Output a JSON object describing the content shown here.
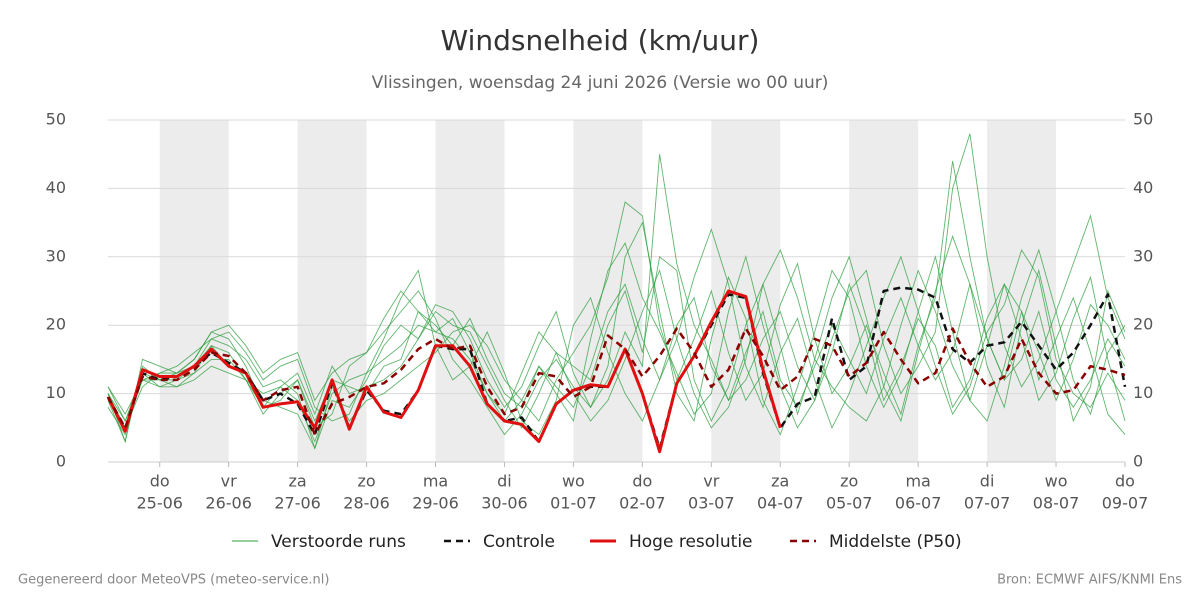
{
  "chart_data": {
    "type": "line",
    "title": "Windsnelheid (km/uur)",
    "subtitle": "Vlissingen, woensdag 24 juni 2026 (Versie wo 00 uur)",
    "categories": [
      null,
      null,
      null,
      [
        "do",
        "25-06"
      ],
      null,
      null,
      null,
      [
        "vr",
        "26-06"
      ],
      null,
      null,
      null,
      [
        "za",
        "27-06"
      ],
      null,
      null,
      null,
      [
        "zo",
        "28-06"
      ],
      null,
      null,
      null,
      [
        "ma",
        "29-06"
      ],
      null,
      null,
      null,
      [
        "di",
        "30-06"
      ],
      null,
      null,
      null,
      [
        "wo",
        "01-07"
      ],
      null,
      null,
      null,
      [
        "do",
        "02-07"
      ],
      null,
      null,
      null,
      [
        "vr",
        "03-07"
      ],
      null,
      null,
      null,
      [
        "za",
        "04-07"
      ],
      null,
      null,
      null,
      [
        "zo",
        "05-07"
      ],
      null,
      null,
      null,
      [
        "ma",
        "06-07"
      ],
      null,
      null,
      null,
      [
        "di",
        "07-07"
      ],
      null,
      null,
      null,
      [
        "wo",
        "08-07"
      ],
      null,
      null,
      null,
      [
        "do",
        "09-07"
      ]
    ],
    "ylim": [
      0,
      50
    ],
    "yticks": [
      0,
      10,
      20,
      30,
      40,
      50
    ],
    "y2lim": [
      0,
      50
    ],
    "y2ticks": [
      0,
      10,
      20,
      30,
      40,
      50
    ],
    "grid": true,
    "day_shading": true,
    "series": [
      {
        "name": "Verstoorde runs",
        "color": "#2e9e3e",
        "members": [
          [
            10,
            3,
            14,
            12,
            11,
            13,
            17,
            16,
            12,
            10,
            11,
            9,
            3,
            10,
            12,
            13,
            15,
            17,
            20,
            19,
            18,
            15,
            10,
            6,
            9,
            14,
            11,
            8,
            14,
            22,
            26,
            18,
            12,
            20,
            24,
            14,
            9,
            16,
            22,
            12,
            8,
            14,
            20,
            15,
            10,
            18,
            24,
            17,
            12,
            16,
            26,
            18,
            12,
            15,
            22,
            12,
            8,
            12,
            18,
            14
          ],
          [
            9,
            5,
            11,
            13,
            13,
            15,
            19,
            18,
            14,
            8,
            9,
            12,
            5,
            7,
            14,
            16,
            19,
            22,
            25,
            21,
            15,
            12,
            8,
            4,
            7,
            12,
            15,
            11,
            8,
            14,
            30,
            35,
            22,
            10,
            6,
            18,
            27,
            21,
            9,
            4,
            11,
            19,
            28,
            24,
            14,
            8,
            13,
            22,
            30,
            19,
            9,
            6,
            14,
            24,
            31,
            22,
            12,
            7,
            16,
            20
          ],
          [
            11,
            6,
            12,
            11,
            12,
            14,
            18,
            17,
            15,
            11,
            12,
            10,
            2,
            9,
            8,
            12,
            17,
            20,
            18,
            22,
            20,
            19,
            14,
            9,
            5,
            10,
            16,
            14,
            12,
            20,
            25,
            16,
            30,
            28,
            12,
            6,
            11,
            20,
            26,
            17,
            7,
            15,
            24,
            30,
            21,
            11,
            6,
            16,
            25,
            33,
            26,
            14,
            8,
            20,
            28,
            17,
            6,
            11,
            25,
            19
          ],
          [
            8,
            4,
            13,
            12,
            12,
            13,
            15,
            15,
            12,
            7,
            10,
            12,
            6,
            12,
            11,
            10,
            14,
            15,
            22,
            20,
            17,
            21,
            15,
            10,
            8,
            14,
            10,
            6,
            18,
            28,
            32,
            24,
            19,
            13,
            7,
            10,
            22,
            30,
            20,
            11,
            5,
            9,
            16,
            26,
            19,
            9,
            14,
            21,
            17,
            8,
            12,
            21,
            26,
            18,
            9,
            13,
            21,
            27,
            15,
            6
          ],
          [
            10,
            5,
            12,
            13,
            14,
            16,
            18,
            19,
            16,
            12,
            14,
            15,
            8,
            6,
            7,
            13,
            18,
            24,
            28,
            17,
            12,
            14,
            19,
            13,
            6,
            4,
            9,
            20,
            24,
            16,
            10,
            6,
            12,
            18,
            27,
            34,
            26,
            14,
            8,
            16,
            21,
            12,
            5,
            10,
            17,
            24,
            30,
            22,
            14,
            7,
            11,
            19,
            23,
            31,
            27,
            15,
            10,
            8,
            13,
            9
          ],
          [
            9,
            3,
            15,
            14,
            13,
            14,
            17,
            14,
            13,
            9,
            8,
            7,
            2,
            11,
            6,
            9,
            10,
            12,
            14,
            16,
            19,
            20,
            17,
            12,
            9,
            6,
            12,
            16,
            20,
            27,
            38,
            36,
            20,
            12,
            18,
            25,
            16,
            9,
            13,
            23,
            29,
            18,
            10,
            14,
            20,
            13,
            7,
            17,
            24,
            44,
            30,
            18,
            12,
            22,
            16,
            9,
            15,
            23,
            20,
            15
          ],
          [
            10,
            6,
            13,
            11,
            11,
            12,
            14,
            13,
            12,
            8,
            11,
            13,
            7,
            14,
            10,
            11,
            12,
            14,
            18,
            23,
            22,
            18,
            12,
            8,
            11,
            17,
            22,
            13,
            8,
            12,
            19,
            14,
            45,
            29,
            20,
            15,
            9,
            12,
            18,
            22,
            14,
            9,
            18,
            25,
            28,
            17,
            10,
            14,
            19,
            40,
            48,
            30,
            17,
            11,
            15,
            22,
            29,
            36,
            24,
            18
          ],
          [
            11,
            7,
            12,
            12,
            13,
            15,
            19,
            20,
            17,
            13,
            15,
            16,
            9,
            13,
            15,
            16,
            21,
            25,
            22,
            19,
            21,
            16,
            10,
            7,
            13,
            19,
            16,
            10,
            6,
            9,
            15,
            22,
            28,
            18,
            10,
            5,
            8,
            15,
            26,
            31,
            24,
            15,
            11,
            8,
            6,
            11,
            20,
            28,
            22,
            14,
            9,
            17,
            26,
            22,
            12,
            18,
            24,
            16,
            7,
            4
          ]
        ]
      },
      {
        "name": "Controle",
        "color": "#111111",
        "dashed": true,
        "values": [
          9.5,
          4.5,
          13,
          12,
          12.5,
          14,
          16,
          14.5,
          13,
          9,
          10,
          8.5,
          4,
          11.5,
          5,
          10.5,
          7.5,
          7,
          10.5,
          17,
          16.5,
          16.5,
          8.5,
          6,
          6.5,
          3,
          8.5,
          10.5,
          11,
          11,
          16.5,
          10,
          2,
          11.5,
          15.5,
          20,
          24.5,
          24,
          13,
          5,
          8.5,
          9.5,
          21,
          12,
          14,
          25,
          25.5,
          25.2,
          24,
          16.5,
          14.5,
          17,
          17.5,
          20.5,
          17,
          13.5,
          16,
          20,
          24.5,
          11
        ]
      },
      {
        "name": "Hoge resolutie",
        "color": "#e01010",
        "dashed": false,
        "values": [
          9.5,
          4.5,
          13.5,
          12.5,
          12.5,
          14,
          16.5,
          14,
          13,
          8,
          8.5,
          8.8,
          5,
          12,
          4.8,
          11,
          7.3,
          6.5,
          10.5,
          17,
          17,
          14,
          8.5,
          6,
          5.5,
          3,
          8.5,
          10.5,
          11.3,
          11,
          16.5,
          10,
          1.5,
          11.5,
          15.5,
          20.5,
          25,
          24.2,
          13.5,
          5,
          null,
          null,
          null,
          null,
          null,
          null,
          null,
          null,
          null,
          null,
          null,
          null,
          null,
          null,
          null,
          null,
          null,
          null,
          null,
          null
        ]
      },
      {
        "name": "Middelste (P50)",
        "color": "#8b0000",
        "dashed": true,
        "values": [
          9.5,
          5,
          12.5,
          12,
          12,
          13.5,
          16,
          15.5,
          13,
          9,
          10.5,
          11,
          4,
          8.5,
          9.5,
          11,
          11.5,
          13.5,
          16.5,
          18,
          16.5,
          17,
          11,
          7,
          8,
          13,
          12.5,
          9.5,
          11,
          18.5,
          16.5,
          12.5,
          15.5,
          19.5,
          16,
          11,
          13.5,
          19.5,
          15.5,
          10.5,
          12.5,
          18,
          17,
          12.5,
          14.5,
          19,
          15,
          11.5,
          13,
          19.5,
          14.5,
          11,
          12.5,
          18,
          13,
          10,
          10.5,
          14,
          13.5,
          12.7
        ]
      }
    ],
    "credit": "Gegenereerd door MeteoVPS (meteo-service.nl)",
    "source": "Bron: ECMWF AIFS/KNMI Ens"
  }
}
